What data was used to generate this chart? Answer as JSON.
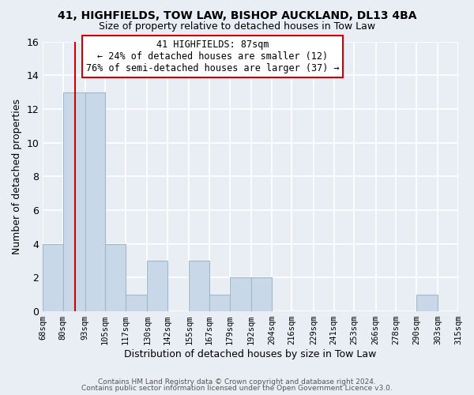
{
  "title": "41, HIGHFIELDS, TOW LAW, BISHOP AUCKLAND, DL13 4BA",
  "subtitle": "Size of property relative to detached houses in Tow Law",
  "xlabel": "Distribution of detached houses by size in Tow Law",
  "ylabel": "Number of detached properties",
  "bin_labels": [
    "68sqm",
    "80sqm",
    "93sqm",
    "105sqm",
    "117sqm",
    "130sqm",
    "142sqm",
    "155sqm",
    "167sqm",
    "179sqm",
    "192sqm",
    "204sqm",
    "216sqm",
    "229sqm",
    "241sqm",
    "253sqm",
    "266sqm",
    "278sqm",
    "290sqm",
    "303sqm",
    "315sqm"
  ],
  "bar_heights": [
    4,
    13,
    13,
    4,
    1,
    3,
    0,
    3,
    1,
    2,
    2,
    0,
    0,
    0,
    0,
    0,
    0,
    0,
    1,
    0,
    0
  ],
  "bar_color": "#c8d8e8",
  "bar_edge_color": "#a0b8cc",
  "ylim": [
    0,
    16
  ],
  "yticks": [
    0,
    2,
    4,
    6,
    8,
    10,
    12,
    14,
    16
  ],
  "annotation_text_line1": "41 HIGHFIELDS: 87sqm",
  "annotation_text_line2": "← 24% of detached houses are smaller (12)",
  "annotation_text_line3": "76% of semi-detached houses are larger (37) →",
  "annotation_box_color": "#ffffff",
  "annotation_box_edge_color": "#cc0000",
  "vertical_line_color": "#cc0000",
  "footer_line1": "Contains HM Land Registry data © Crown copyright and database right 2024.",
  "footer_line2": "Contains public sector information licensed under the Open Government Licence v3.0.",
  "background_color": "#e8eef4",
  "plot_bg_color": "#e8eef4",
  "grid_color": "#ffffff",
  "bin_edges": [
    68,
    80,
    93,
    105,
    117,
    130,
    142,
    155,
    167,
    179,
    192,
    204,
    216,
    229,
    241,
    253,
    266,
    278,
    290,
    303,
    315
  ]
}
